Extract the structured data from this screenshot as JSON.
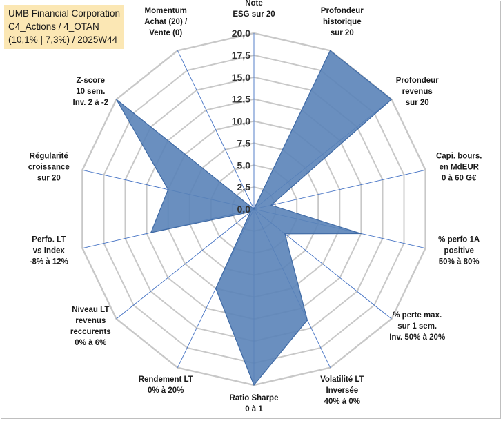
{
  "title": {
    "line1": "UMB Financial Corporation",
    "line2": "C4_Actions / 4_OTAN",
    "line3": "(10,1% | 7,3%) / 2025W44"
  },
  "colors": {
    "fill": "#5a83b8",
    "stroke": "#3f6aa5",
    "grid": "#c8c8c8",
    "spoke": "#4472c4",
    "title_bg": "#fbe7b4"
  },
  "chart_data": {
    "type": "radar",
    "range": [
      0,
      20
    ],
    "step": 2.5,
    "tick_labels": [
      "0,0",
      "2,5",
      "5,0",
      "7,5",
      "10,0",
      "12,5",
      "15,0",
      "17,5",
      "20,0"
    ],
    "categories": [
      [
        "Note",
        "ESG sur 20"
      ],
      [
        "Profondeur",
        "historique",
        "sur 20"
      ],
      [
        "Profondeur",
        "revenus",
        "sur 20"
      ],
      [
        "Capi. bours.",
        "en MdEUR",
        "0 à 60 G€"
      ],
      [
        "% perfo 1A",
        "positive",
        "50% à 80%"
      ],
      [
        "% perte max.",
        "sur 1 sem.",
        "Inv. 50% à 20%"
      ],
      [
        "Volatilité LT",
        "Inversée",
        "40% à 0%"
      ],
      [
        "Ratio Sharpe",
        "0 à 1"
      ],
      [
        "Rendement LT",
        "0% à 20%"
      ],
      [
        "Niveau LT",
        "revenus",
        "reccurents",
        "0% à 6%"
      ],
      [
        "Perfo. LT",
        "vs Index",
        "-8% à 12%"
      ],
      [
        "Régularité",
        "croissance",
        "sur 20"
      ],
      [
        "Z-score",
        "10 sem.",
        "Inv. 2 à -2"
      ],
      [
        "Momentum",
        "Achat (20) /",
        "Vente (0)"
      ]
    ],
    "series": [
      {
        "name": "UMB Financial Corporation",
        "values": [
          0,
          20,
          20,
          2,
          12.5,
          4.5,
          14,
          20,
          10,
          0.5,
          12,
          10,
          20,
          0
        ]
      }
    ]
  }
}
